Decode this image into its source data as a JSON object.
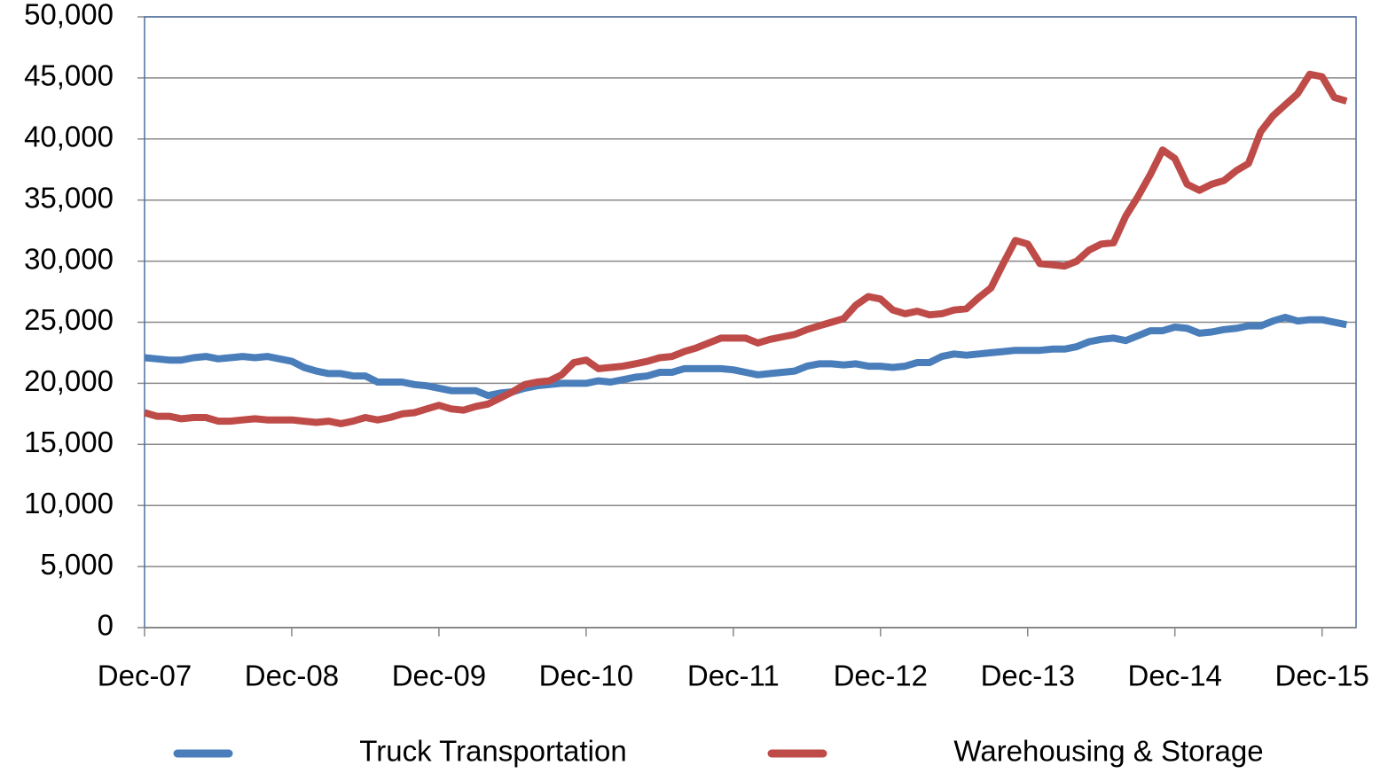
{
  "chart_data": {
    "type": "line",
    "categories": [
      "Dec-07",
      null,
      null,
      null,
      null,
      null,
      null,
      null,
      null,
      null,
      null,
      null,
      "Dec-08",
      null,
      null,
      null,
      null,
      null,
      null,
      null,
      null,
      null,
      null,
      null,
      "Dec-09",
      null,
      null,
      null,
      null,
      null,
      null,
      null,
      null,
      null,
      null,
      null,
      "Dec-10",
      null,
      null,
      null,
      null,
      null,
      null,
      null,
      null,
      null,
      null,
      null,
      "Dec-11",
      null,
      null,
      null,
      null,
      null,
      null,
      null,
      null,
      null,
      null,
      null,
      "Dec-12",
      null,
      null,
      null,
      null,
      null,
      null,
      null,
      null,
      null,
      null,
      null,
      "Dec-13",
      null,
      null,
      null,
      null,
      null,
      null,
      null,
      null,
      null,
      null,
      null,
      "Dec-14",
      null,
      null,
      null,
      null,
      null,
      null,
      null,
      null,
      null,
      null,
      null,
      "Dec-15",
      null,
      null
    ],
    "series": [
      {
        "name": "Truck Transportation",
        "color": "#4a7ebb",
        "values": [
          22100,
          22000,
          21900,
          21900,
          22100,
          22200,
          22000,
          22100,
          22200,
          22100,
          22200,
          22000,
          21800,
          21300,
          21000,
          20800,
          20800,
          20600,
          20600,
          20100,
          20100,
          20100,
          19900,
          19800,
          19600,
          19400,
          19400,
          19400,
          19000,
          19200,
          19300,
          19600,
          19800,
          19900,
          20000,
          20000,
          20000,
          20200,
          20100,
          20300,
          20500,
          20600,
          20900,
          20900,
          21200,
          21200,
          21200,
          21200,
          21100,
          20900,
          20700,
          20800,
          20900,
          21000,
          21400,
          21600,
          21600,
          21500,
          21600,
          21400,
          21400,
          21300,
          21400,
          21700,
          21700,
          22200,
          22400,
          22300,
          22400,
          22500,
          22600,
          22700,
          22700,
          22700,
          22800,
          22800,
          23000,
          23400,
          23600,
          23700,
          23500,
          23900,
          24300,
          24300,
          24600,
          24500,
          24100,
          24200,
          24400,
          24500,
          24700,
          24700,
          25100,
          25400,
          25100,
          25200,
          25200,
          25000,
          24800
        ]
      },
      {
        "name": "Warehousing & Storage",
        "color": "#be4b48",
        "values": [
          17600,
          17300,
          17300,
          17100,
          17200,
          17200,
          16900,
          16900,
          17000,
          17100,
          17000,
          17000,
          17000,
          16900,
          16800,
          16900,
          16700,
          16900,
          17200,
          17000,
          17200,
          17500,
          17600,
          17900,
          18200,
          17900,
          17800,
          18100,
          18300,
          18800,
          19300,
          19900,
          20100,
          20200,
          20700,
          21700,
          21900,
          21200,
          21300,
          21400,
          21600,
          21800,
          22100,
          22200,
          22600,
          22900,
          23300,
          23700,
          23700,
          23700,
          23300,
          23600,
          23800,
          24000,
          24400,
          24700,
          25000,
          25300,
          26400,
          27100,
          26900,
          26000,
          25700,
          25900,
          25600,
          25700,
          26000,
          26100,
          27000,
          27800,
          29800,
          31700,
          31400,
          29800,
          29700,
          29600,
          30000,
          30900,
          31400,
          31500,
          33700,
          35300,
          37100,
          39100,
          38400,
          36300,
          35800,
          36300,
          36600,
          37400,
          38000,
          40600,
          41900,
          42800,
          43700,
          45300,
          45100,
          43400,
          43100
        ]
      }
    ],
    "ylim": [
      0,
      50000
    ],
    "yticks": [
      0,
      {
        "value": 5000,
        "label": "5,000"
      },
      {
        "value": 10000,
        "label": "10,000"
      },
      {
        "value": 15000,
        "label": "15,000"
      },
      {
        "value": 20000,
        "label": "20,000"
      },
      {
        "value": 25000,
        "label": "25,000"
      },
      {
        "value": 30000,
        "label": "30,000"
      },
      {
        "value": 35000,
        "label": "35,000"
      },
      {
        "value": 40000,
        "label": "40,000"
      },
      {
        "value": 45000,
        "label": "45,000"
      },
      {
        "value": 50000,
        "label": "50,000"
      }
    ],
    "grid": true,
    "legend": "bottom"
  }
}
